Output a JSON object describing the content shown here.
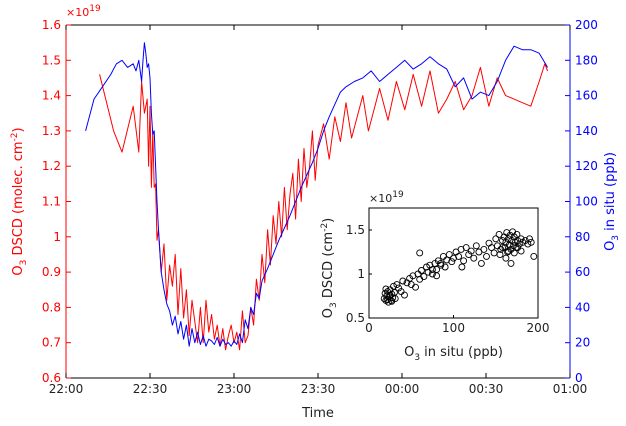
{
  "chart_data": [
    {
      "type": "line",
      "title": "",
      "xlabel": "Time",
      "x_ticks": [
        "22:00",
        "22:30",
        "23:00",
        "23:30",
        "00:00",
        "00:30",
        "01:00"
      ],
      "left_axis": {
        "label_main": "O",
        "label_sub": "3",
        "label_rest": " DSCD (molec. cm",
        "label_sup": "-2",
        "label_close": ")",
        "color": "#ff0000",
        "ylim": [
          0.6,
          1.6
        ],
        "ticks": [
          "0.6",
          "0.7",
          "0.8",
          "0.9",
          "1",
          "1.1",
          "1.2",
          "1.3",
          "1.4",
          "1.5",
          "1.6"
        ],
        "exponent_base": "×10",
        "exponent": "19"
      },
      "right_axis": {
        "label_main": "O",
        "label_sub": "3",
        "label_rest": " in situ (ppb)",
        "color": "#0000ff",
        "ylim": [
          0,
          200
        ],
        "ticks": [
          "0",
          "20",
          "40",
          "60",
          "80",
          "100",
          "120",
          "140",
          "160",
          "180",
          "200"
        ]
      },
      "x_range_minutes_after_22h": [
        0,
        180
      ],
      "series": [
        {
          "axis": "left",
          "color": "#ff0000",
          "x_minutes_after_22h": [
            12,
            17,
            20,
            24,
            26,
            27,
            28,
            29,
            29.5,
            30,
            30.5,
            31,
            31.5,
            32,
            32.5,
            33,
            34,
            35,
            36,
            37,
            38,
            39,
            40,
            41,
            42,
            43,
            44,
            45,
            46,
            47,
            48,
            49,
            50,
            51,
            52,
            53,
            54,
            55,
            56,
            57,
            58,
            59,
            60,
            61,
            62,
            63,
            64,
            65,
            66,
            67,
            68,
            69,
            70,
            71,
            72,
            73,
            74,
            75,
            76,
            77,
            78,
            79,
            80,
            81,
            82,
            83,
            84,
            85,
            86,
            87,
            88,
            89,
            90,
            92,
            94,
            96,
            98,
            100,
            102,
            104,
            106,
            108,
            110,
            112,
            115,
            118,
            121,
            124,
            127,
            130,
            133,
            136,
            139,
            142,
            145,
            148,
            151,
            154,
            157,
            160,
            163,
            166,
            169,
            171,
            172
          ],
          "y": [
            1.46,
            1.3,
            1.24,
            1.37,
            1.24,
            1.44,
            1.35,
            1.39,
            1.2,
            1.37,
            1.14,
            1.3,
            1.14,
            1.15,
            0.99,
            1.02,
            0.9,
            0.98,
            0.82,
            0.92,
            0.86,
            0.95,
            0.78,
            0.91,
            0.77,
            0.85,
            0.72,
            0.82,
            0.76,
            0.7,
            0.8,
            0.7,
            0.82,
            0.73,
            0.78,
            0.71,
            0.75,
            0.69,
            0.74,
            0.68,
            0.72,
            0.75,
            0.7,
            0.73,
            0.68,
            0.79,
            0.7,
            0.72,
            0.8,
            0.75,
            0.88,
            0.82,
            0.95,
            0.87,
            1.02,
            0.92,
            1.06,
            0.98,
            1.1,
            1.0,
            1.14,
            1.02,
            1.12,
            1.18,
            1.05,
            1.22,
            1.1,
            1.25,
            1.14,
            1.2,
            1.3,
            1.16,
            1.26,
            1.32,
            1.22,
            1.34,
            1.27,
            1.38,
            1.28,
            1.34,
            1.4,
            1.3,
            1.36,
            1.42,
            1.33,
            1.44,
            1.36,
            1.46,
            1.37,
            1.47,
            1.35,
            1.39,
            1.44,
            1.36,
            1.4,
            1.48,
            1.37,
            1.45,
            1.4,
            1.39,
            1.38,
            1.37,
            1.44,
            1.49,
            1.47
          ]
        },
        {
          "axis": "right",
          "color": "#0000ff",
          "x_minutes_after_22h": [
            7,
            10,
            13,
            16,
            18,
            20,
            22,
            24,
            25,
            26,
            27,
            27.5,
            28,
            28.5,
            29,
            29.5,
            30,
            30.5,
            31,
            31.5,
            32,
            32.5,
            33,
            34,
            35,
            36,
            37,
            38,
            39,
            40,
            41,
            42,
            43,
            44,
            45,
            46,
            47,
            48,
            49,
            50,
            51,
            52,
            53,
            54,
            55,
            56,
            57,
            58,
            59,
            60,
            61,
            62,
            63,
            64,
            65,
            66,
            67,
            68,
            69,
            70,
            72,
            74,
            76,
            78,
            80,
            82,
            84,
            86,
            88,
            90,
            92,
            94,
            96,
            98,
            100,
            103,
            106,
            109,
            112,
            115,
            118,
            121,
            124,
            127,
            130,
            133,
            136,
            139,
            142,
            145,
            148,
            151,
            154,
            157,
            160,
            163,
            166,
            169,
            172
          ],
          "y": [
            140,
            158,
            165,
            172,
            178,
            180,
            176,
            178,
            174,
            180,
            168,
            180,
            190,
            184,
            176,
            178,
            170,
            150,
            138,
            140,
            120,
            100,
            85,
            60,
            50,
            42,
            38,
            30,
            35,
            25,
            32,
            22,
            30,
            18,
            28,
            20,
            26,
            19,
            24,
            18,
            22,
            21,
            19,
            23,
            18,
            22,
            19,
            20,
            18,
            21,
            19,
            25,
            20,
            33,
            28,
            40,
            36,
            48,
            45,
            55,
            62,
            70,
            78,
            85,
            92,
            100,
            108,
            115,
            122,
            130,
            140,
            148,
            155,
            162,
            165,
            168,
            170,
            174,
            168,
            172,
            176,
            180,
            175,
            178,
            182,
            178,
            175,
            165,
            170,
            158,
            162,
            160,
            168,
            180,
            188,
            186,
            186,
            184,
            176
          ]
        }
      ]
    },
    {
      "type": "scatter",
      "title": "",
      "xlabel_main": "O",
      "xlabel_sub": "3",
      "xlabel_rest": " in situ (ppb)",
      "ylabel_main": "O",
      "ylabel_sub": "3",
      "ylabel_rest": " DSCD (cm",
      "ylabel_sup": "-2",
      "ylabel_close": ")",
      "xlim": [
        0,
        200
      ],
      "ylim": [
        0.5,
        1.75
      ],
      "x_ticks": [
        "0",
        "100",
        "200"
      ],
      "y_ticks": [
        "0.5",
        "1",
        "1.5"
      ],
      "exponent_base": "×10",
      "exponent": "19",
      "points": [
        [
          18,
          0.72
        ],
        [
          19,
          0.78
        ],
        [
          20,
          0.7
        ],
        [
          21,
          0.75
        ],
        [
          22,
          0.8
        ],
        [
          23,
          0.68
        ],
        [
          24,
          0.74
        ],
        [
          25,
          0.82
        ],
        [
          26,
          0.7
        ],
        [
          27,
          0.77
        ],
        [
          28,
          0.73
        ],
        [
          29,
          0.86
        ],
        [
          30,
          0.79
        ],
        [
          20,
          0.83
        ],
        [
          22,
          0.71
        ],
        [
          25,
          0.76
        ],
        [
          27,
          0.69
        ],
        [
          31,
          0.72
        ],
        [
          33,
          0.88
        ],
        [
          35,
          0.84
        ],
        [
          38,
          0.8
        ],
        [
          40,
          0.92
        ],
        [
          42,
          0.76
        ],
        [
          45,
          0.9
        ],
        [
          48,
          0.95
        ],
        [
          50,
          0.88
        ],
        [
          52,
          0.98
        ],
        [
          55,
          0.85
        ],
        [
          58,
          1.0
        ],
        [
          60,
          0.94
        ],
        [
          62,
          1.04
        ],
        [
          65,
          0.97
        ],
        [
          68,
          1.08
        ],
        [
          70,
          1.02
        ],
        [
          72,
          1.1
        ],
        [
          75,
          1.05
        ],
        [
          78,
          1.12
        ],
        [
          80,
          0.98
        ],
        [
          82,
          1.15
        ],
        [
          85,
          1.1
        ],
        [
          88,
          1.2
        ],
        [
          90,
          1.08
        ],
        [
          92,
          1.16
        ],
        [
          95,
          1.22
        ],
        [
          98,
          1.14
        ],
        [
          100,
          1.18
        ],
        [
          103,
          1.25
        ],
        [
          106,
          1.2
        ],
        [
          109,
          1.28
        ],
        [
          112,
          1.15
        ],
        [
          115,
          1.3
        ],
        [
          118,
          1.22
        ],
        [
          121,
          1.26
        ],
        [
          124,
          1.18
        ],
        [
          127,
          1.32
        ],
        [
          130,
          1.25
        ],
        [
          133,
          1.12
        ],
        [
          136,
          1.28
        ],
        [
          139,
          1.2
        ],
        [
          142,
          1.35
        ],
        [
          145,
          1.3
        ],
        [
          148,
          1.24
        ],
        [
          150,
          1.4
        ],
        [
          152,
          1.32
        ],
        [
          154,
          1.45
        ],
        [
          156,
          1.28
        ],
        [
          158,
          1.38
        ],
        [
          160,
          1.42
        ],
        [
          161,
          1.3
        ],
        [
          162,
          1.36
        ],
        [
          163,
          1.47
        ],
        [
          164,
          1.25
        ],
        [
          165,
          1.4
        ],
        [
          166,
          1.33
        ],
        [
          167,
          1.44
        ],
        [
          168,
          1.28
        ],
        [
          169,
          1.38
        ],
        [
          170,
          1.48
        ],
        [
          171,
          1.32
        ],
        [
          172,
          1.42
        ],
        [
          173,
          1.36
        ],
        [
          174,
          1.3
        ],
        [
          175,
          1.45
        ],
        [
          176,
          1.38
        ],
        [
          178,
          1.34
        ],
        [
          180,
          1.4
        ],
        [
          182,
          1.36
        ],
        [
          185,
          1.38
        ],
        [
          188,
          1.34
        ],
        [
          190,
          1.4
        ],
        [
          192,
          1.36
        ],
        [
          195,
          1.2
        ],
        [
          155,
          1.22
        ],
        [
          158,
          1.3
        ],
        [
          162,
          1.18
        ],
        [
          165,
          1.26
        ],
        [
          168,
          1.12
        ],
        [
          172,
          1.24
        ],
        [
          176,
          1.3
        ],
        [
          180,
          1.26
        ],
        [
          75,
          1.0
        ],
        [
          80,
          1.05
        ],
        [
          85,
          1.12
        ],
        [
          60,
          1.24
        ],
        [
          110,
          1.08
        ]
      ]
    }
  ]
}
